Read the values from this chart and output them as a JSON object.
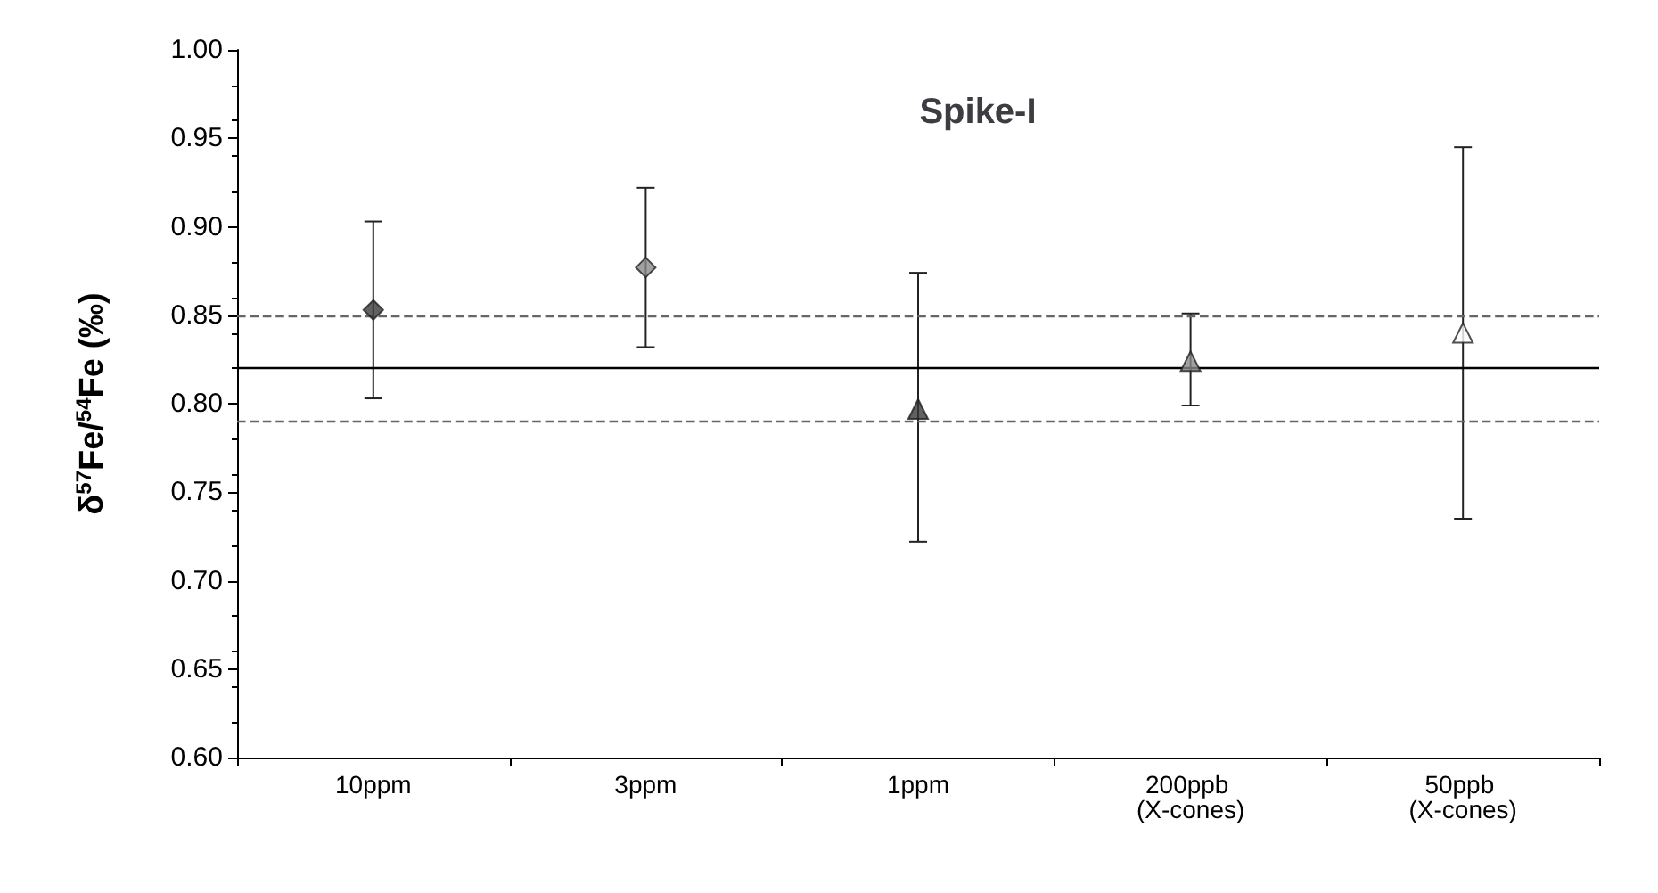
{
  "chart_data": {
    "type": "scatter",
    "title": "Spike-I",
    "ylabel": "δ$^{57}$Fe/$^{54}$Fe (‰)",
    "categories": [
      "10ppm",
      "3ppm",
      "1ppm",
      "200ppb (X-cones)",
      "50ppb (X-cones)"
    ],
    "series": [
      {
        "marker": "diamond",
        "x": [
          "10ppm",
          "3ppm"
        ],
        "values": [
          0.853,
          0.877
        ],
        "colors": [
          "#3a3a3a",
          "#8a8a8a"
        ],
        "errors": [
          [
            0.803,
            0.903
          ],
          [
            0.832,
            0.922
          ]
        ]
      },
      {
        "marker": "triangle",
        "x": [
          "1ppm",
          "200ppb (X-cones)",
          "50ppb (X-cones)"
        ],
        "values": [
          0.797,
          0.824,
          0.84
        ],
        "colors": [
          "#3a3a3a",
          "#8a8a8a",
          "#ffffff"
        ],
        "errors": [
          [
            0.722,
            0.874
          ],
          [
            0.799,
            0.851
          ],
          [
            0.735,
            0.945
          ]
        ]
      }
    ],
    "ylim": [
      0.6,
      1.0
    ],
    "yticks": [
      {
        "value": 0.6,
        "label": "0.60"
      },
      {
        "value": 0.65,
        "label": "0.65"
      },
      {
        "value": 0.7,
        "label": "0.70"
      },
      {
        "value": 0.75,
        "label": "0.75"
      },
      {
        "value": 0.8,
        "label": "0.80"
      },
      {
        "value": 0.85,
        "label": "0.85"
      },
      {
        "value": 0.9,
        "label": "0.90"
      },
      {
        "value": 0.95,
        "label": "0.95"
      },
      {
        "value": 1.0,
        "label": "1.00"
      }
    ],
    "ref_lines": [
      {
        "axis": "y",
        "value": 0.821,
        "line_style": "solid",
        "color": "#000000"
      },
      {
        "axis": "y",
        "value": 0.85,
        "line_style": "dashed",
        "color": "#666666"
      },
      {
        "axis": "y",
        "value": 0.791,
        "line_style": "dashed",
        "color": "#666666"
      }
    ],
    "grid": false
  }
}
